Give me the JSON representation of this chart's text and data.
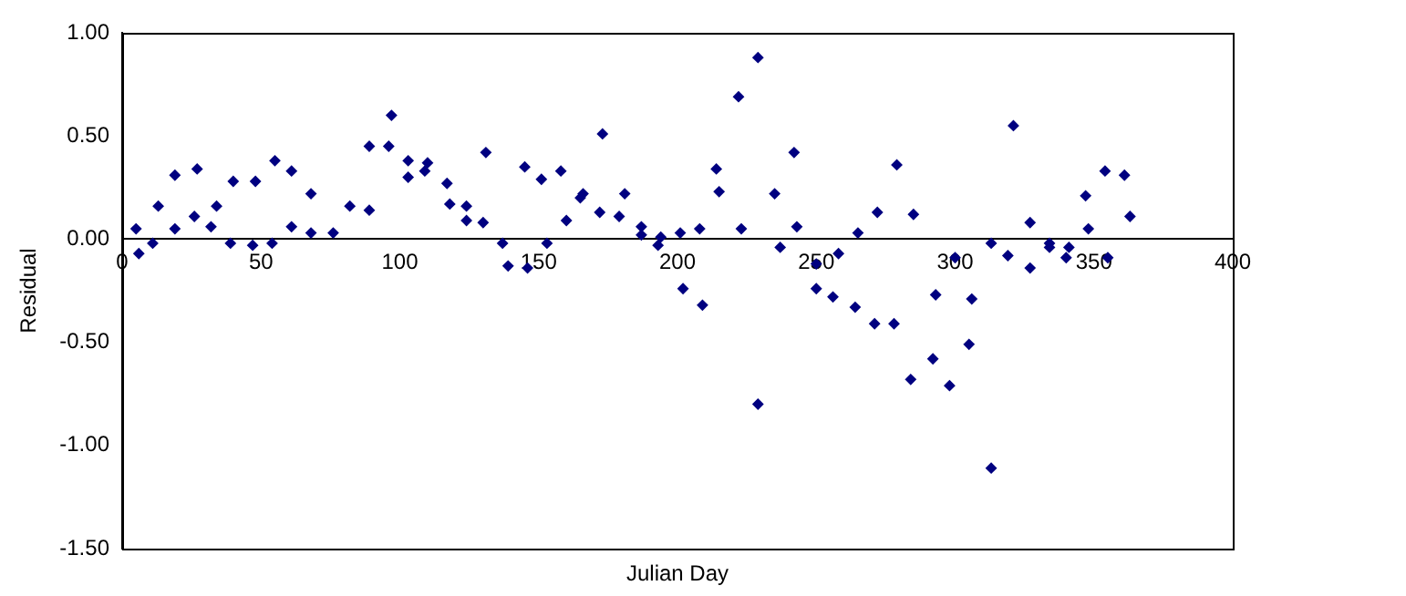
{
  "chart_data": {
    "type": "scatter",
    "xlabel": "Julian Day",
    "ylabel": "Residual",
    "marker": "diamond",
    "grid": false,
    "legend": false,
    "xlim": [
      0,
      400
    ],
    "xticks": [
      0,
      50,
      100,
      150,
      200,
      250,
      300,
      350,
      400
    ],
    "ylim": [
      -1.5,
      1
    ],
    "yticks": [
      {
        "value": -1.5,
        "label": "-1.50"
      },
      {
        "value": -1,
        "label": "-1.00"
      },
      {
        "value": -0.5,
        "label": "-0.50"
      },
      {
        "value": 0,
        "label": "0.00"
      },
      {
        "value": 0.5,
        "label": "0.50"
      },
      {
        "value": 1,
        "label": "1.00"
      }
    ],
    "series": [
      {
        "color": "#000080",
        "x": [
          5,
          6,
          11,
          13,
          19,
          19,
          26,
          27,
          32,
          34,
          39,
          40,
          47,
          48,
          54,
          55,
          61,
          61,
          68,
          68,
          76,
          82,
          89,
          89,
          96,
          97,
          103,
          103,
          109,
          110,
          117,
          118,
          124,
          124,
          130,
          131,
          137,
          139,
          145,
          146,
          151,
          153,
          158,
          160,
          165,
          166,
          172,
          173,
          179,
          181,
          187,
          187,
          193,
          194,
          201,
          202,
          208,
          209,
          214,
          215,
          223,
          222,
          229,
          229,
          235,
          237,
          242,
          243,
          250,
          250,
          256,
          258,
          264,
          265,
          271,
          272,
          278,
          279,
          284,
          285,
          292,
          293,
          298,
          300,
          305,
          306,
          313,
          313,
          319,
          321,
          327,
          327,
          334,
          334,
          340,
          341,
          347,
          348,
          354,
          355,
          361,
          363
        ],
        "values": [
          0.05,
          -0.07,
          -0.02,
          0.16,
          0.05,
          0.31,
          0.11,
          0.34,
          0.06,
          0.16,
          -0.02,
          0.28,
          -0.03,
          0.28,
          -0.02,
          0.38,
          0.06,
          0.33,
          0.03,
          0.22,
          0.03,
          0.16,
          0.45,
          0.14,
          0.45,
          0.6,
          0.38,
          0.3,
          0.33,
          0.37,
          0.27,
          0.17,
          0.09,
          0.16,
          0.08,
          0.42,
          -0.02,
          -0.13,
          0.35,
          -0.14,
          0.29,
          -0.02,
          0.33,
          0.09,
          0.2,
          0.22,
          0.13,
          0.51,
          0.11,
          0.22,
          0.02,
          0.06,
          -0.03,
          0.01,
          0.03,
          -0.24,
          0.05,
          -0.32,
          0.34,
          0.23,
          0.05,
          0.69,
          0.88,
          -0.8,
          0.22,
          -0.04,
          0.42,
          0.06,
          -0.12,
          -0.24,
          -0.28,
          -0.07,
          -0.33,
          0.03,
          -0.41,
          0.13,
          -0.41,
          0.36,
          -0.68,
          0.12,
          -0.58,
          -0.27,
          -0.71,
          -0.09,
          -0.51,
          -0.29,
          -0.02,
          -1.11,
          -0.08,
          0.55,
          -0.14,
          0.08,
          -0.04,
          -0.02,
          -0.09,
          -0.04,
          0.21,
          0.05,
          0.33,
          -0.09,
          0.31,
          0.11
        ]
      }
    ]
  }
}
